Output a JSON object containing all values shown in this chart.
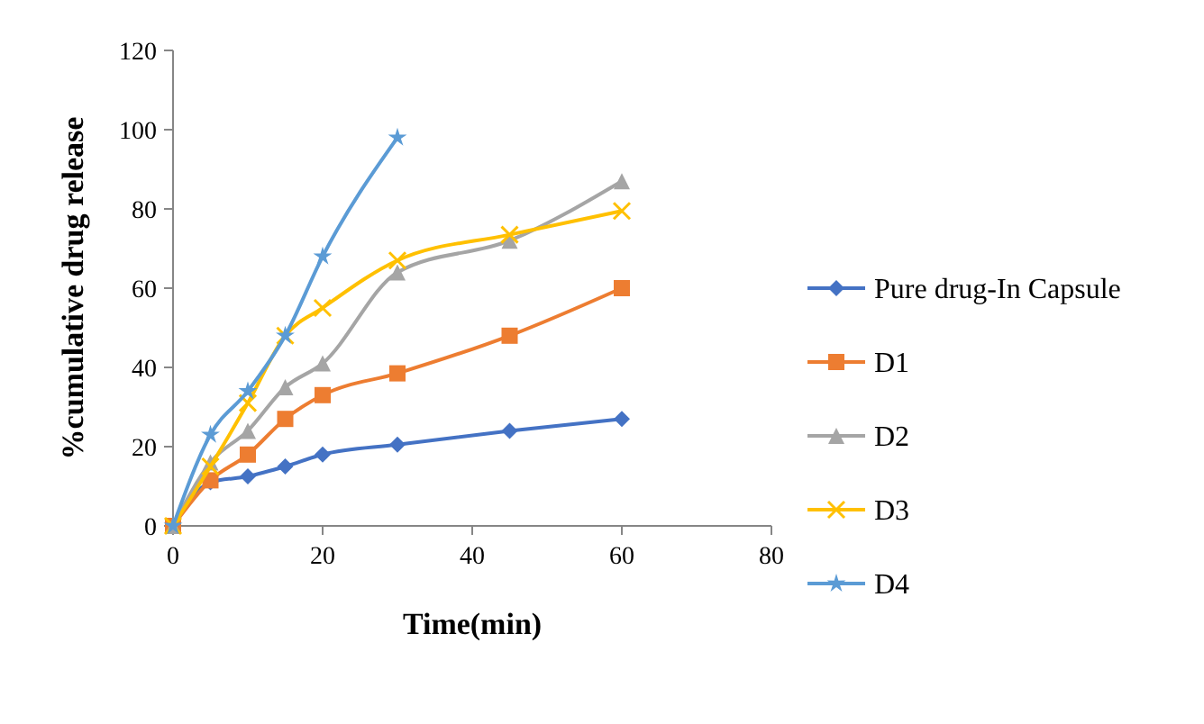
{
  "chart_data": {
    "type": "line",
    "xlabel": "Time(min)",
    "ylabel": "%cumulative drug release",
    "x": [
      0,
      5,
      10,
      15,
      20,
      30,
      45,
      60
    ],
    "xlim": [
      0,
      80
    ],
    "xticks": [
      0,
      20,
      40,
      60,
      80
    ],
    "ylim": [
      0,
      120
    ],
    "yticks": [
      0,
      20,
      40,
      60,
      80,
      100,
      120
    ],
    "legend": "right",
    "grid": false,
    "series": [
      {
        "name": "Pure drug-In Capsule",
        "color": "#4472c4",
        "marker": "diamond",
        "values": [
          0,
          11,
          12.5,
          15,
          18,
          20.5,
          24,
          27
        ]
      },
      {
        "name": "D1",
        "color": "#ed7d31",
        "marker": "square",
        "values": [
          0,
          11.5,
          18,
          27,
          33,
          38.5,
          48,
          60
        ]
      },
      {
        "name": "D2",
        "color": "#a5a5a5",
        "marker": "triangle",
        "values": [
          0,
          16,
          24,
          35,
          41,
          64,
          72,
          87
        ]
      },
      {
        "name": "D3",
        "color": "#ffc000",
        "marker": "cross",
        "values": [
          0,
          15,
          31,
          48,
          55,
          67,
          73.5,
          79.5
        ]
      },
      {
        "name": "D4",
        "color": "#5b9bd5",
        "marker": "star",
        "x": [
          0,
          5,
          10,
          15,
          20,
          30
        ],
        "values": [
          0,
          23,
          34,
          48,
          68,
          98
        ]
      }
    ]
  }
}
